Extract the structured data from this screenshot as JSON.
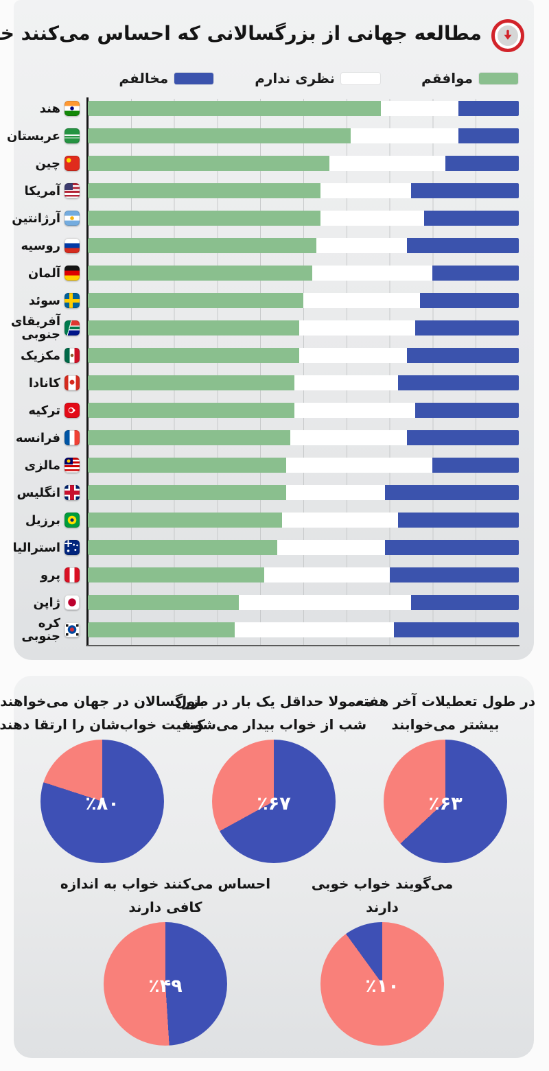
{
  "title": "مطالعه جهانی از بزرگسالانی که احساس می‌کنند خواب خوبی دارند",
  "badge_icon": "circle-down-arrow-icon",
  "colors": {
    "agree_green": "#8abf8e",
    "neutral_white": "#ffffff",
    "disagree_blue": "#3b53ad",
    "pie_blue": "#3e50b5",
    "pie_pink": "#f9807a",
    "card_bg": "#e9eaeb",
    "axis": "#161616"
  },
  "legend": {
    "items": [
      {
        "key": "agree",
        "label": "موافقم",
        "color": "#8abf8e"
      },
      {
        "key": "neutral",
        "label": "نظری ندارم",
        "color": "#ffffff"
      },
      {
        "key": "disagree",
        "label": "مخالفم",
        "color": "#3b53ad"
      }
    ]
  },
  "flags": [
    "india",
    "saudi-arabia",
    "china",
    "usa",
    "argentina",
    "russia",
    "germany",
    "sweden",
    "south-africa",
    "mexico",
    "canada",
    "turkey",
    "france",
    "malaysia",
    "uk",
    "brazil",
    "australia",
    "peru",
    "japan",
    "south-korea"
  ],
  "chart_data": [
    {
      "type": "bar",
      "orientation": "horizontal-stacked",
      "title": "مطالعه جهانی از بزرگسالانی که احساس می‌کنند خواب خوبی دارند",
      "categories": [
        "هند",
        "عربستان",
        "چین",
        "آمریکا",
        "آرژانتین",
        "روسیه",
        "آلمان",
        "سوئد",
        "آفریقای جنوبی",
        "مکزیک",
        "کانادا",
        "ترکیه",
        "فرانسه",
        "مالزی",
        "انگلیس",
        "برزیل",
        "استرالیا",
        "پرو",
        "ژاپن",
        "کره جنوبی"
      ],
      "series": [
        {
          "name": "موافقم",
          "color": "#8abf8e",
          "values": [
            68,
            61,
            56,
            54,
            54,
            53,
            52,
            50,
            49,
            49,
            48,
            48,
            47,
            46,
            46,
            45,
            44,
            41,
            35,
            34
          ]
        },
        {
          "name": "نظری ندارم",
          "color": "#ffffff",
          "values": [
            18,
            25,
            27,
            21,
            24,
            21,
            28,
            27,
            27,
            25,
            24,
            28,
            27,
            34,
            23,
            27,
            25,
            29,
            40,
            37
          ]
        },
        {
          "name": "مخالفم",
          "color": "#3b53ad",
          "values": [
            14,
            14,
            17,
            25,
            22,
            26,
            20,
            23,
            24,
            26,
            28,
            24,
            26,
            20,
            31,
            28,
            31,
            30,
            25,
            29
          ]
        }
      ],
      "xlim": [
        0,
        100
      ],
      "grid": true,
      "grid_step_percent": 10,
      "legend_position": "top"
    },
    {
      "type": "pie",
      "row": "top",
      "caption_lines": [
        "در طول تعطیلات آخر هفته",
        "بیشتر می‌خوابند"
      ],
      "value": 63,
      "value_label": "٪۶۳",
      "slices": [
        {
          "value": 63,
          "color": "#3e50b5"
        },
        {
          "value": 37,
          "color": "#f9807a"
        }
      ]
    },
    {
      "type": "pie",
      "row": "top",
      "caption_lines": [
        "معمولا حداقل یک بار در طول",
        "شب از خواب بیدار می‌شوند"
      ],
      "value": 67,
      "value_label": "٪۶۷",
      "slices": [
        {
          "value": 67,
          "color": "#3e50b5"
        },
        {
          "value": 33,
          "color": "#f9807a"
        }
      ]
    },
    {
      "type": "pie",
      "row": "top",
      "caption_lines": [
        "بزرگسالان در جهان می‌خواهند",
        "کیفیت خواب‌شان را ارتقا دهند"
      ],
      "value": 80,
      "value_label": "٪۸۰",
      "slices": [
        {
          "value": 80,
          "color": "#3e50b5"
        },
        {
          "value": 20,
          "color": "#f9807a"
        }
      ]
    },
    {
      "type": "pie",
      "row": "bottom",
      "caption_lines": [
        "می‌گویند خواب خوبی",
        "دارند"
      ],
      "value": 10,
      "value_label": "٪۱۰",
      "slices": [
        {
          "value": 90,
          "color": "#f9807a"
        },
        {
          "value": 10,
          "color": "#3e50b5"
        }
      ]
    },
    {
      "type": "pie",
      "row": "bottom",
      "caption_lines": [
        "احساس می‌کنند خواب به اندازه",
        "کافی دارند"
      ],
      "value": 49,
      "value_label": "٪۴۹",
      "slices": [
        {
          "value": 49,
          "color": "#3e50b5"
        },
        {
          "value": 51,
          "color": "#f9807a"
        }
      ]
    }
  ]
}
